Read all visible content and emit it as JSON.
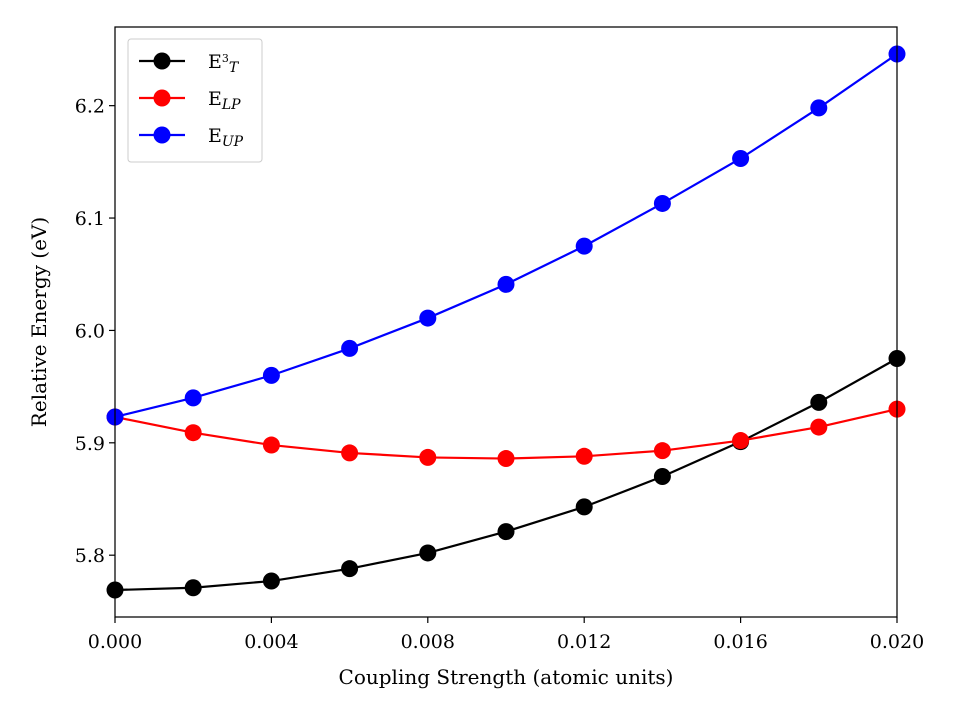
{
  "chart_data": {
    "type": "line",
    "title": "",
    "xlabel": "Coupling Strength (atomic units)",
    "ylabel": "Relative Energy (eV)",
    "xlim": [
      0.0,
      0.02
    ],
    "ylim": [
      5.745,
      6.27
    ],
    "x_ticks": [
      "0.000",
      "0.004",
      "0.008",
      "0.012",
      "0.016",
      "0.020"
    ],
    "x_tick_values": [
      0.0,
      0.004,
      0.008,
      0.012,
      0.016,
      0.02
    ],
    "y_ticks": [
      "5.8",
      "5.9",
      "6.0",
      "6.1",
      "6.2"
    ],
    "y_tick_values": [
      5.8,
      5.9,
      6.0,
      6.1,
      6.2
    ],
    "grid": false,
    "legend_position": "top-left",
    "x": [
      0.0,
      0.002,
      0.004,
      0.006,
      0.008,
      0.01,
      0.012,
      0.014,
      0.016,
      0.018,
      0.02
    ],
    "series": [
      {
        "name": "E³T",
        "label_main": "E",
        "label_sup": "3",
        "label_sub": "T",
        "color": "#000000",
        "values": [
          5.769,
          5.771,
          5.777,
          5.788,
          5.802,
          5.821,
          5.843,
          5.87,
          5.901,
          5.936,
          5.975
        ]
      },
      {
        "name": "ELP",
        "label_main": "E",
        "label_sup": "",
        "label_sub": "LP",
        "color": "#ff0000",
        "values": [
          5.923,
          5.909,
          5.898,
          5.891,
          5.887,
          5.886,
          5.888,
          5.893,
          5.902,
          5.914,
          5.93
        ]
      },
      {
        "name": "EUP",
        "label_main": "E",
        "label_sup": "",
        "label_sub": "UP",
        "color": "#0000ff",
        "values": [
          5.923,
          5.94,
          5.96,
          5.984,
          6.011,
          6.041,
          6.075,
          6.113,
          6.153,
          6.198,
          6.246
        ]
      }
    ]
  }
}
